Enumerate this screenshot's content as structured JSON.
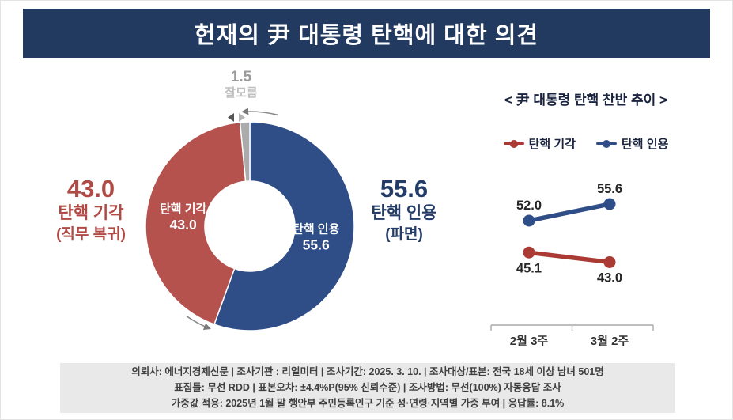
{
  "header": {
    "title": "헌재의 尹 대통령 탄핵에 대한 의견"
  },
  "colors": {
    "header_bg": "#223a5f",
    "accept_navy": "#2f4e87",
    "reject_red": "#b5524e",
    "unknown_gray": "#ababab",
    "trend_red": "#a93b34",
    "trend_navy": "#2f4e87",
    "footer_bg": "#e9e9e9"
  },
  "donut_callouts": {
    "reject": {
      "value": "43.0",
      "label": "탄핵 기각",
      "sub": "(직무 복귀)"
    },
    "accept": {
      "value": "55.6",
      "label": "탄핵 인용",
      "sub": "(파면)"
    },
    "unknown": {
      "value": "1.5",
      "label": "잘모름"
    }
  },
  "trend": {
    "title": "< 尹 대통령 탄핵 찬반 추이 >",
    "legend": [
      {
        "name": "탄핵 기각",
        "color": "#a93b34"
      },
      {
        "name": "탄핵 인용",
        "color": "#2f4e87"
      }
    ]
  },
  "footer": {
    "lines": [
      "의뢰사: 에너지경제신문 | 조사기관 : 리얼미터 |  조사기간: 2025. 3. 10. | 조사대상/표본: 전국 18세 이상 남녀 501명",
      "표집틀: 무선 RDD | 표본오차: ±4.4%P(95% 신뢰수준) | 조사방법: 무선(100%) 자동응답 조사",
      "가중값 적용: 2025년 1월 말 행안부 주민등록인구 기준 성·연령·지역별 가중 부여 | 응답률: 8.1%"
    ]
  },
  "chart_data": [
    {
      "type": "pie",
      "title": "헌재의 尹 대통령 탄핵에 대한 의견",
      "labels": [
        "탄핵 인용",
        "탄핵 기각",
        "잘모름"
      ],
      "values": [
        55.6,
        43.0,
        1.5
      ],
      "colors": [
        "#2f4e87",
        "#b5524e",
        "#ababab"
      ],
      "donut": true,
      "start_angle_deg": 0,
      "direction": "clockwise",
      "callout_subs": {
        "탄핵 인용": "(파면)",
        "탄핵 기각": "(직무 복귀)"
      }
    },
    {
      "type": "line",
      "title": "< 尹 대통령 탄핵 찬반 추이 >",
      "categories": [
        "2월 3주",
        "3월 2주"
      ],
      "series": [
        {
          "name": "탄핵 기각",
          "values": [
            45.1,
            43.0
          ],
          "color": "#a93b34",
          "label_position": "below"
        },
        {
          "name": "탄핵 인용",
          "values": [
            52.0,
            55.6
          ],
          "color": "#2f4e87",
          "label_position": "above"
        }
      ],
      "ylim": [
        40,
        60
      ],
      "legend_position": "top",
      "grid": false
    }
  ]
}
